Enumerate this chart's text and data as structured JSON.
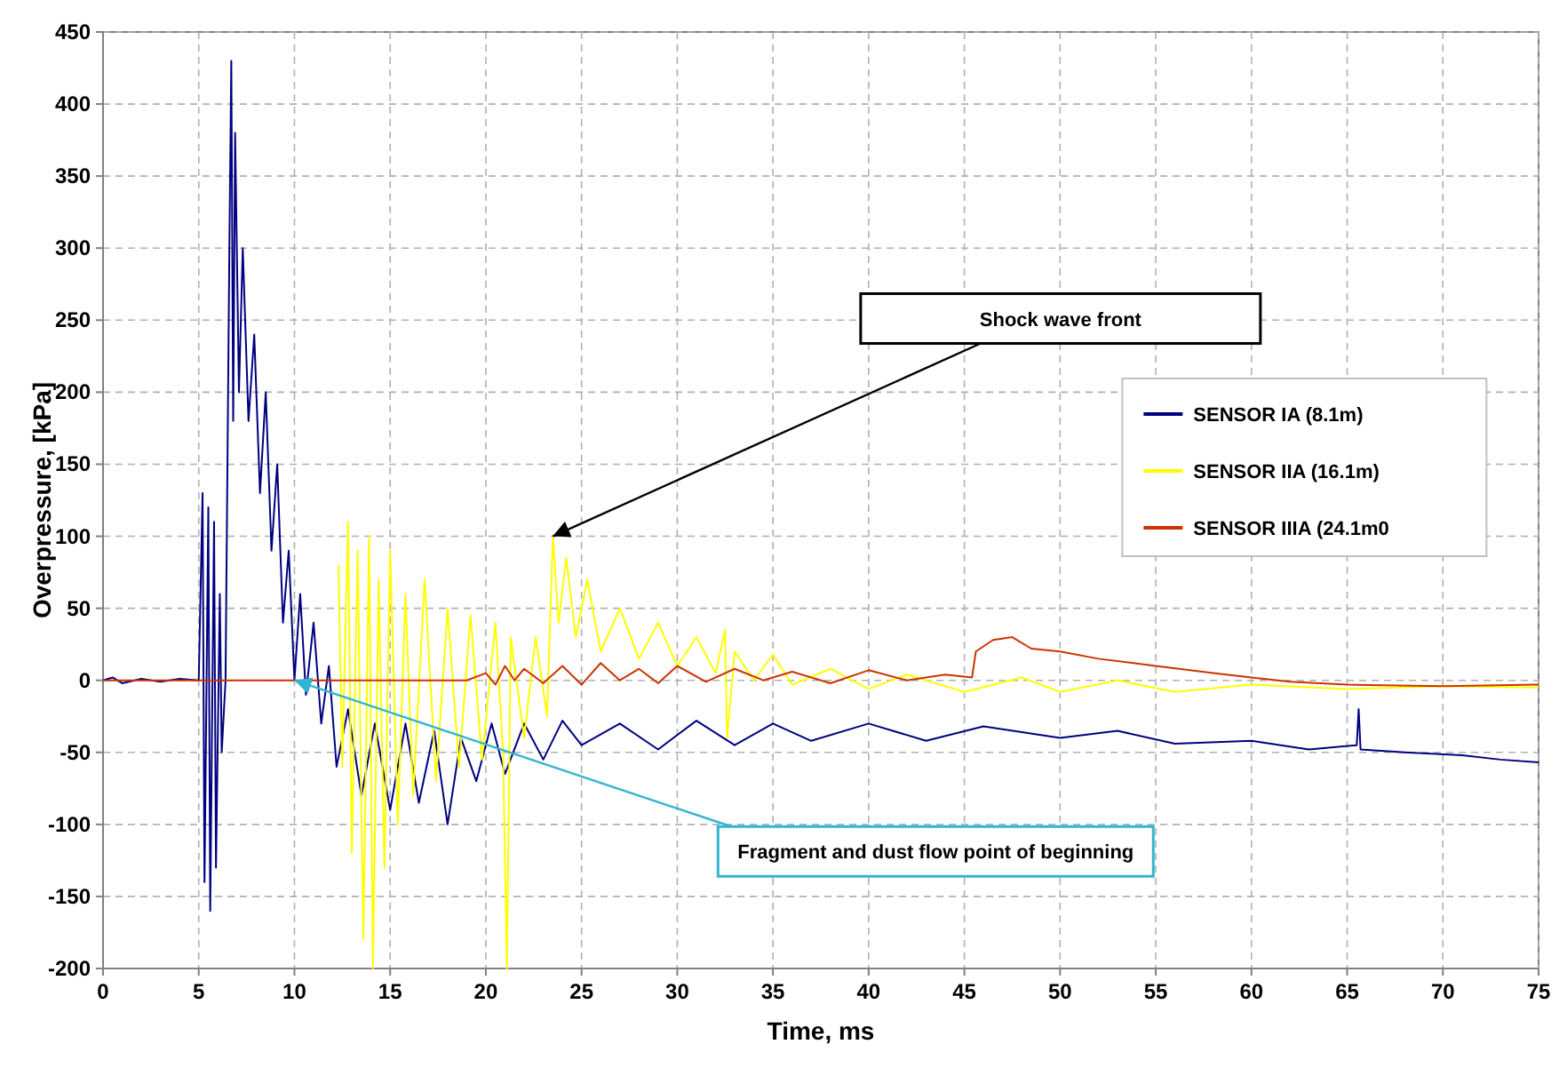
{
  "chart_data": {
    "type": "line",
    "xlabel": "Time, ms",
    "ylabel": "Overpressure, [kPa]",
    "xlim": [
      0,
      75
    ],
    "xticks": [
      0,
      5,
      10,
      15,
      20,
      25,
      30,
      35,
      40,
      45,
      50,
      55,
      60,
      65,
      70,
      75
    ],
    "ylim": [
      -200,
      450
    ],
    "yticks": [
      -200,
      -150,
      -100,
      -50,
      0,
      50,
      100,
      150,
      200,
      250,
      300,
      350,
      400,
      450
    ],
    "grid": true,
    "legend": "right",
    "marker": "none",
    "line_style": "solid",
    "annotations": [
      {
        "text": "Shock wave front",
        "x": 23.5,
        "y": 100
      },
      {
        "text": "Fragment and dust flow point of beginning",
        "x": 10,
        "y": 0
      }
    ],
    "series": [
      {
        "name": "SENSOR IA (8.1m)",
        "color": "#000080",
        "x": [
          0,
          0.5,
          1,
          2,
          3,
          4,
          5,
          5.2,
          5.3,
          5.5,
          5.6,
          5.8,
          5.9,
          6.1,
          6.2,
          6.4,
          6.6,
          6.7,
          6.8,
          6.9,
          7.1,
          7.3,
          7.6,
          7.9,
          8.2,
          8.5,
          8.8,
          9.1,
          9.4,
          9.7,
          10,
          10.3,
          10.6,
          11,
          11.4,
          11.8,
          12.2,
          12.8,
          13.5,
          14.2,
          15,
          15.8,
          16.5,
          17.3,
          18,
          18.7,
          19.5,
          20.3,
          21,
          22,
          23,
          24,
          25,
          27,
          29,
          31,
          33,
          35,
          37,
          40,
          43,
          46,
          50,
          53,
          56,
          60,
          63,
          65.5,
          65.6,
          65.7,
          68,
          71,
          73,
          75
        ],
        "values": [
          0,
          2,
          -2,
          1,
          -1,
          1,
          0,
          130,
          -140,
          120,
          -160,
          110,
          -130,
          60,
          -50,
          0,
          300,
          430,
          180,
          380,
          200,
          300,
          180,
          240,
          130,
          200,
          90,
          150,
          40,
          90,
          0,
          60,
          -10,
          40,
          -30,
          10,
          -60,
          -20,
          -80,
          -30,
          -90,
          -30,
          -85,
          -35,
          -100,
          -40,
          -70,
          -30,
          -65,
          -30,
          -55,
          -28,
          -45,
          -30,
          -48,
          -28,
          -45,
          -30,
          -42,
          -30,
          -42,
          -32,
          -40,
          -35,
          -44,
          -42,
          -48,
          -45,
          -20,
          -48,
          -50,
          -52,
          -55,
          -57
        ]
      },
      {
        "name": "SENSOR IIA (16.1m)",
        "color": "#ffff00",
        "x": [
          12.3,
          12.5,
          12.8,
          13,
          13.3,
          13.6,
          13.9,
          14.1,
          14.4,
          14.7,
          15,
          15.4,
          15.8,
          16.2,
          16.8,
          17.4,
          18,
          18.6,
          19.2,
          19.8,
          20.5,
          20.9,
          21.1,
          21.3,
          22,
          22.6,
          23.2,
          23.5,
          23.8,
          24.2,
          24.7,
          25.3,
          26,
          27,
          28,
          29,
          30,
          31,
          32,
          32.5,
          32.6,
          33,
          34,
          35,
          36,
          38,
          40,
          42,
          45,
          48,
          50,
          53,
          56,
          60,
          65,
          70,
          75
        ],
        "values": [
          80,
          -60,
          110,
          -120,
          90,
          -180,
          100,
          -200,
          70,
          -130,
          90,
          -100,
          60,
          -80,
          70,
          -70,
          50,
          -60,
          45,
          -55,
          40,
          -50,
          -200,
          30,
          -40,
          30,
          -25,
          100,
          40,
          85,
          30,
          70,
          20,
          50,
          15,
          40,
          10,
          30,
          5,
          35,
          -40,
          20,
          0,
          18,
          -3,
          8,
          -6,
          4,
          -8,
          2,
          -8,
          0,
          -8,
          -3,
          -6,
          -4,
          -5
        ]
      },
      {
        "name": "SENSOR IIIA (24.1m0",
        "color": "#cc3300",
        "x": [
          0,
          5,
          10,
          15,
          19,
          20,
          20.5,
          21,
          21.5,
          22,
          23,
          24,
          25,
          26,
          27,
          28,
          29,
          30,
          31.5,
          33,
          34.5,
          36,
          38,
          40,
          42,
          44,
          45.4,
          45.6,
          46.5,
          47.5,
          48.5,
          50,
          52,
          55,
          58,
          60,
          62,
          65,
          70,
          75
        ],
        "values": [
          0,
          0,
          0,
          0,
          0,
          5,
          -3,
          10,
          0,
          8,
          -2,
          10,
          -3,
          12,
          0,
          8,
          -2,
          10,
          -1,
          8,
          0,
          6,
          -2,
          7,
          0,
          4,
          2,
          20,
          28,
          30,
          22,
          20,
          15,
          10,
          5,
          2,
          -1,
          -3,
          -4,
          -3
        ]
      }
    ]
  }
}
